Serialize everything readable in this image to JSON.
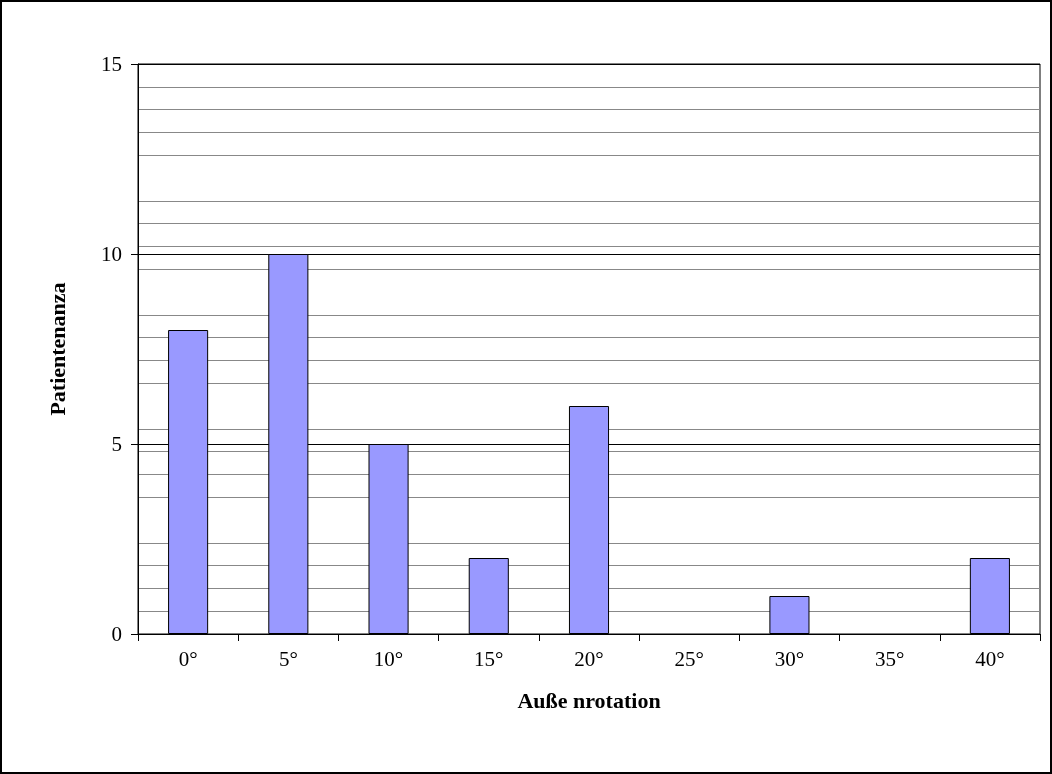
{
  "chart_data": {
    "type": "bar",
    "xlabel": "Auße nrotation",
    "ylabel": "Patientenanza",
    "categories": [
      "0°",
      "5°",
      "10°",
      "15°",
      "20°",
      "25°",
      "30°",
      "35°",
      "40°"
    ],
    "values": [
      8,
      10,
      5,
      2,
      6,
      0,
      1,
      0,
      2
    ],
    "color": "#9999ff",
    "ylim": [
      0,
      15
    ],
    "yticks": [
      0,
      5,
      10,
      15
    ],
    "grid": true
  }
}
